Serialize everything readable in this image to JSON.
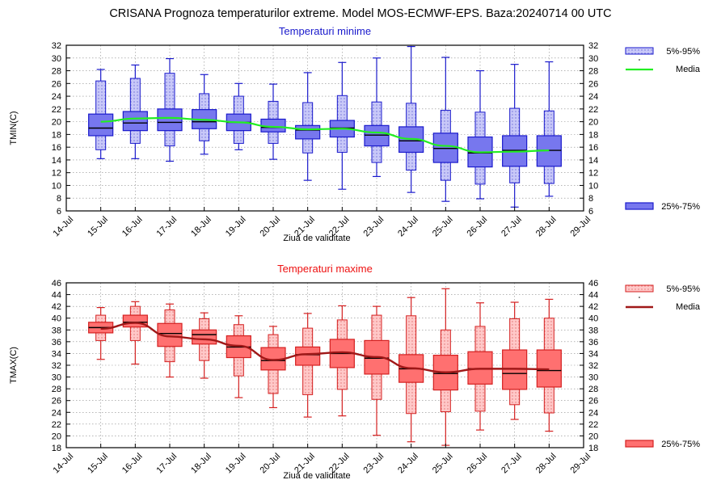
{
  "page_title": "CRISANA  Prognoza temperaturilor extreme.  Model MOS-ECMWF-EPS. Baza:20240714 00 UTC",
  "colors": {
    "min_fill": "#7777ee",
    "min_fill_light": "#c8c8f8",
    "min_stroke": "#1a1acc",
    "min_mean": "#22ee22",
    "max_fill": "#ff7070",
    "max_fill_light": "#ffc8c8",
    "max_stroke": "#d42020",
    "max_mean": "#a01818"
  },
  "chart_data": [
    {
      "id": "tmin",
      "type": "boxplot",
      "title": "Temperaturi minime",
      "title_color": "#1a1acc",
      "xlabel": "Ziua de validitate",
      "ylabel": "TMIN(C)",
      "ylim": [
        6,
        32
      ],
      "yticks": [
        6,
        8,
        10,
        12,
        14,
        16,
        18,
        20,
        22,
        24,
        26,
        28,
        30,
        32
      ],
      "x_ticklabels": [
        "14-Jul",
        "15-Jul",
        "16-Jul",
        "17-Jul",
        "18-Jul",
        "19-Jul",
        "20-Jul",
        "21-Jul",
        "22-Jul",
        "23-Jul",
        "24-Jul",
        "25-Jul",
        "26-Jul",
        "27-Jul",
        "28-Jul",
        "29-Jul"
      ],
      "grid": true,
      "legend": {
        "placement": "right",
        "items": [
          {
            "label": "5%-95%",
            "kind": "light-box"
          },
          {
            "label": "Media",
            "kind": "line"
          },
          {
            "label": "25%-75%",
            "kind": "dark-box"
          }
        ]
      },
      "boxes": [
        {
          "date": "15-Jul",
          "min": 14.2,
          "p5": 15.6,
          "q1": 17.8,
          "median": 19.0,
          "q3": 21.2,
          "p95": 26.4,
          "max": 28.2
        },
        {
          "date": "16-Jul",
          "min": 14.2,
          "p5": 16.6,
          "q1": 18.6,
          "median": 19.8,
          "q3": 21.6,
          "p95": 26.8,
          "max": 28.9
        },
        {
          "date": "17-Jul",
          "min": 13.8,
          "p5": 16.2,
          "q1": 18.6,
          "median": 19.9,
          "q3": 22.0,
          "p95": 27.6,
          "max": 29.9
        },
        {
          "date": "18-Jul",
          "min": 14.9,
          "p5": 17.0,
          "q1": 18.9,
          "median": 20.0,
          "q3": 21.9,
          "p95": 24.4,
          "max": 27.4
        },
        {
          "date": "19-Jul",
          "min": 15.6,
          "p5": 16.6,
          "q1": 18.6,
          "median": 19.9,
          "q3": 21.2,
          "p95": 24.0,
          "max": 26.0
        },
        {
          "date": "20-Jul",
          "min": 14.1,
          "p5": 16.6,
          "q1": 18.4,
          "median": 19.1,
          "q3": 20.4,
          "p95": 23.2,
          "max": 25.9
        },
        {
          "date": "21-Jul",
          "min": 10.8,
          "p5": 15.1,
          "q1": 17.3,
          "median": 18.7,
          "q3": 19.4,
          "p95": 23.0,
          "max": 27.7
        },
        {
          "date": "22-Jul",
          "min": 9.4,
          "p5": 15.2,
          "q1": 17.6,
          "median": 19.0,
          "q3": 20.2,
          "p95": 24.1,
          "max": 29.3
        },
        {
          "date": "23-Jul",
          "min": 11.4,
          "p5": 13.6,
          "q1": 16.2,
          "median": 17.9,
          "q3": 19.4,
          "p95": 23.1,
          "max": 30.0
        },
        {
          "date": "24-Jul",
          "min": 8.9,
          "p5": 12.4,
          "q1": 15.2,
          "median": 17.0,
          "q3": 19.2,
          "p95": 22.9,
          "max": 31.8
        },
        {
          "date": "25-Jul",
          "min": 7.5,
          "p5": 10.8,
          "q1": 13.6,
          "median": 15.8,
          "q3": 18.2,
          "p95": 21.8,
          "max": 30.1
        },
        {
          "date": "26-Jul",
          "min": 7.9,
          "p5": 10.2,
          "q1": 12.9,
          "median": 15.1,
          "q3": 17.6,
          "p95": 21.5,
          "max": 28.0
        },
        {
          "date": "27-Jul",
          "min": 6.6,
          "p5": 10.4,
          "q1": 13.0,
          "median": 15.5,
          "q3": 17.8,
          "p95": 22.1,
          "max": 29.0
        },
        {
          "date": "28-Jul",
          "min": 8.3,
          "p5": 10.3,
          "q1": 13.0,
          "median": 15.5,
          "q3": 17.8,
          "p95": 21.7,
          "max": 29.4
        }
      ],
      "mean": [
        20.0,
        20.5,
        20.6,
        20.3,
        19.9,
        19.2,
        18.8,
        18.9,
        18.3,
        17.3,
        16.2,
        15.2,
        15.3,
        15.5
      ]
    },
    {
      "id": "tmax",
      "type": "boxplot",
      "title": "Temperaturi maxime",
      "title_color": "#ee1111",
      "xlabel": "Ziua de validitate",
      "ylabel": "TMAX(C)",
      "ylim": [
        18,
        46
      ],
      "yticks": [
        18,
        20,
        22,
        24,
        26,
        28,
        30,
        32,
        34,
        36,
        38,
        40,
        42,
        44,
        46
      ],
      "x_ticklabels": [
        "14-Jul",
        "15-Jul",
        "16-Jul",
        "17-Jul",
        "18-Jul",
        "19-Jul",
        "20-Jul",
        "21-Jul",
        "22-Jul",
        "23-Jul",
        "24-Jul",
        "25-Jul",
        "26-Jul",
        "27-Jul",
        "28-Jul",
        "29-Jul"
      ],
      "grid": true,
      "legend": {
        "placement": "right",
        "items": [
          {
            "label": "5%-95%",
            "kind": "light-box"
          },
          {
            "label": "Media",
            "kind": "line"
          },
          {
            "label": "25%-75%",
            "kind": "dark-box"
          }
        ]
      },
      "boxes": [
        {
          "date": "15-Jul",
          "min": 33.0,
          "p5": 36.2,
          "q1": 37.5,
          "median": 38.4,
          "q3": 39.3,
          "p95": 40.5,
          "max": 41.8
        },
        {
          "date": "16-Jul",
          "min": 32.2,
          "p5": 36.2,
          "q1": 38.5,
          "median": 39.3,
          "q3": 40.5,
          "p95": 42.0,
          "max": 42.8
        },
        {
          "date": "17-Jul",
          "min": 30.0,
          "p5": 32.6,
          "q1": 35.2,
          "median": 37.4,
          "q3": 39.1,
          "p95": 41.4,
          "max": 42.4
        },
        {
          "date": "18-Jul",
          "min": 29.8,
          "p5": 32.8,
          "q1": 35.6,
          "median": 37.2,
          "q3": 38.0,
          "p95": 39.9,
          "max": 40.9
        },
        {
          "date": "19-Jul",
          "min": 26.5,
          "p5": 30.2,
          "q1": 33.3,
          "median": 35.1,
          "q3": 37.0,
          "p95": 38.9,
          "max": 40.4
        },
        {
          "date": "20-Jul",
          "min": 24.8,
          "p5": 27.2,
          "q1": 31.2,
          "median": 32.8,
          "q3": 35.0,
          "p95": 37.2,
          "max": 38.6
        },
        {
          "date": "21-Jul",
          "min": 23.2,
          "p5": 27.0,
          "q1": 32.0,
          "median": 33.8,
          "q3": 35.1,
          "p95": 38.3,
          "max": 40.8
        },
        {
          "date": "22-Jul",
          "min": 23.4,
          "p5": 27.9,
          "q1": 31.6,
          "median": 34.0,
          "q3": 36.4,
          "p95": 39.7,
          "max": 42.1
        },
        {
          "date": "23-Jul",
          "min": 20.1,
          "p5": 26.2,
          "q1": 30.5,
          "median": 33.2,
          "q3": 36.2,
          "p95": 40.5,
          "max": 42.0
        },
        {
          "date": "24-Jul",
          "min": 19.0,
          "p5": 23.8,
          "q1": 29.1,
          "median": 31.4,
          "q3": 33.8,
          "p95": 40.4,
          "max": 43.5
        },
        {
          "date": "25-Jul",
          "min": 18.4,
          "p5": 24.1,
          "q1": 27.8,
          "median": 30.6,
          "q3": 33.7,
          "p95": 38.0,
          "max": 45.0
        },
        {
          "date": "26-Jul",
          "min": 21.0,
          "p5": 24.2,
          "q1": 28.8,
          "median": 31.4,
          "q3": 34.3,
          "p95": 38.6,
          "max": 42.6
        },
        {
          "date": "27-Jul",
          "min": 22.8,
          "p5": 25.3,
          "q1": 27.9,
          "median": 30.6,
          "q3": 34.6,
          "p95": 39.9,
          "max": 42.7
        },
        {
          "date": "28-Jul",
          "min": 20.8,
          "p5": 23.9,
          "q1": 28.3,
          "median": 31.1,
          "q3": 34.6,
          "p95": 40.0,
          "max": 43.2
        }
      ],
      "mean": [
        38.2,
        39.2,
        36.9,
        36.4,
        35.3,
        32.9,
        33.9,
        34.2,
        33.4,
        31.5,
        30.8,
        31.4,
        31.4,
        31.3
      ]
    }
  ]
}
